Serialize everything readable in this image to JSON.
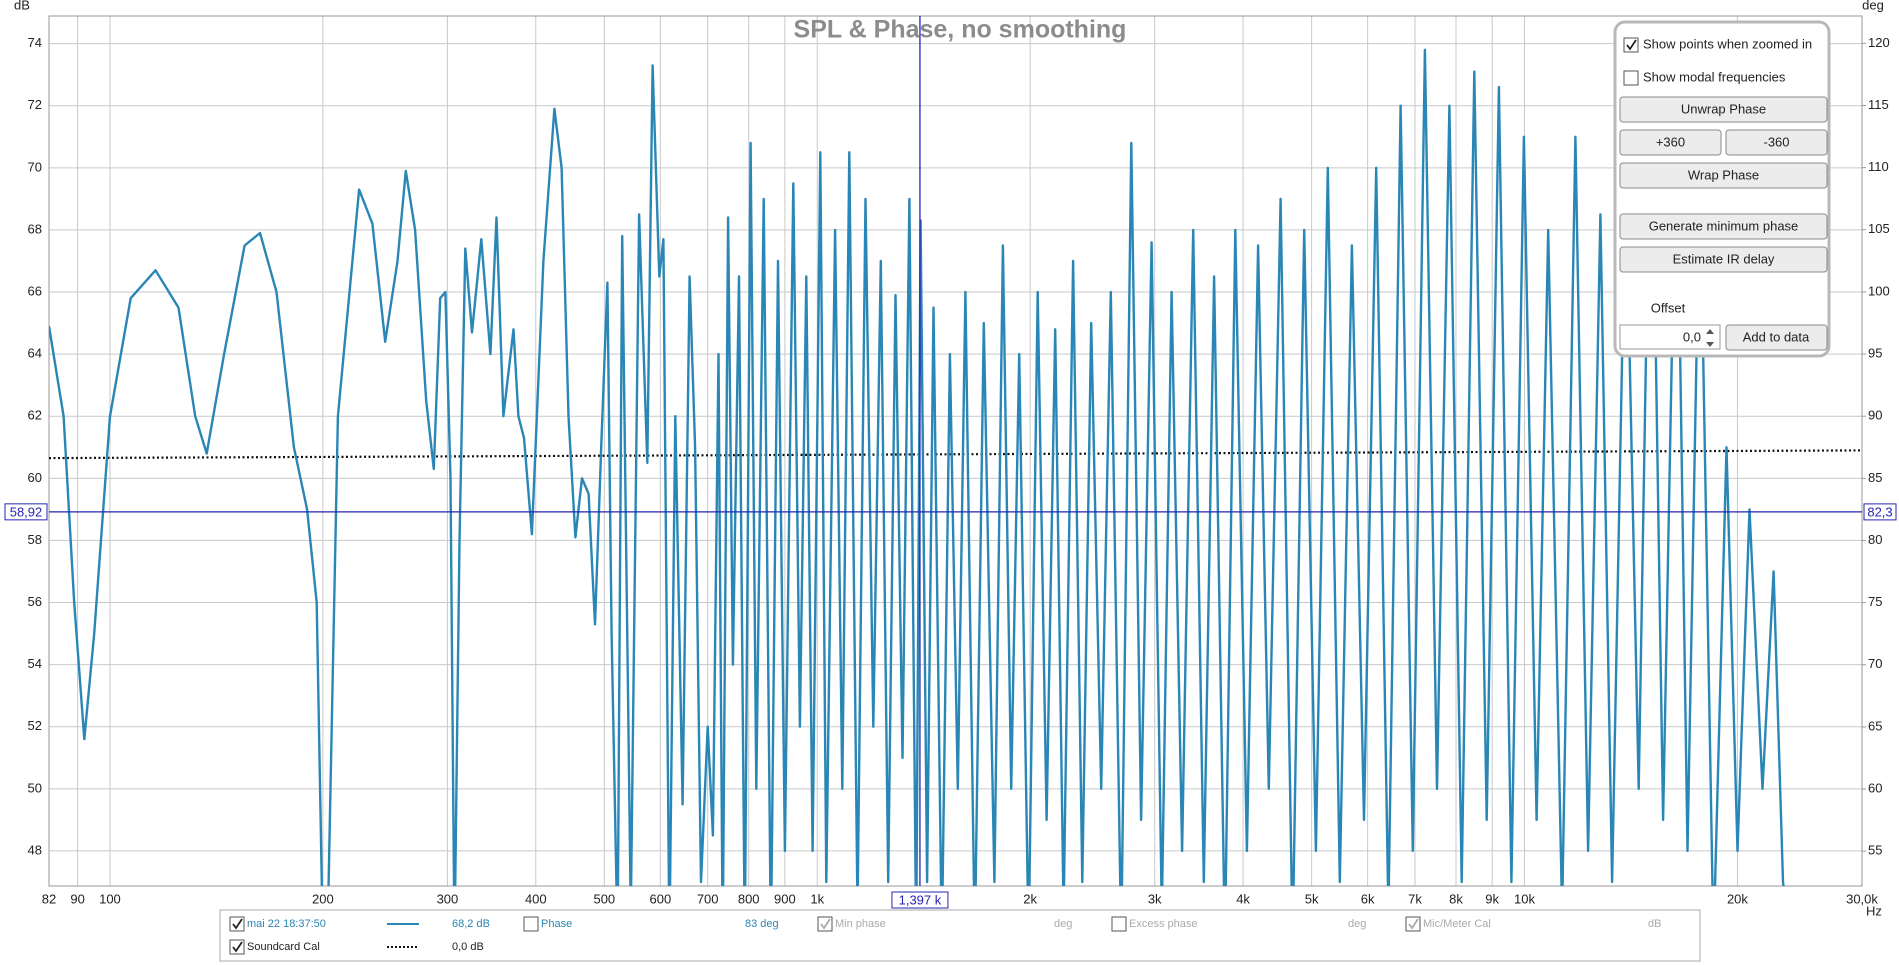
{
  "chart_data": {
    "type": "line",
    "title": "SPL & Phase, no smoothing",
    "y_unit": "dB",
    "y2_unit": "deg",
    "x_unit": "Hz",
    "log_x": true,
    "grid": true,
    "xlim": [
      82,
      30000
    ],
    "xticks": [
      82,
      90,
      100,
      200,
      300,
      400,
      500,
      600,
      700,
      800,
      900,
      {
        "value": 1000,
        "label": "1k"
      },
      {
        "value": 2000,
        "label": "2k"
      },
      {
        "value": 3000,
        "label": "3k"
      },
      {
        "value": 4000,
        "label": "4k"
      },
      {
        "value": 5000,
        "label": "5k"
      },
      {
        "value": 6000,
        "label": "6k"
      },
      {
        "value": 7000,
        "label": "7k"
      },
      {
        "value": 8000,
        "label": "8k"
      },
      {
        "value": 9000,
        "label": "9k"
      },
      {
        "value": 10000,
        "label": "10k"
      },
      {
        "value": 20000,
        "label": "20k"
      },
      {
        "value": 30000,
        "label": "30,0k"
      }
    ],
    "ylim": [
      46.87,
      74.89
    ],
    "yticks": [
      48,
      50,
      52,
      54,
      56,
      58,
      60,
      62,
      64,
      66,
      68,
      70,
      72,
      74
    ],
    "y2lim": [
      52.2,
      122.2
    ],
    "y2ticks": [
      55,
      60,
      65,
      70,
      75,
      80,
      85,
      90,
      95,
      100,
      105,
      110,
      115,
      120
    ],
    "cursor": {
      "x": {
        "value": 1397,
        "label": "1,397 k"
      },
      "y": {
        "value": 58.92,
        "label": "58,92"
      },
      "y2": {
        "value": 82.3,
        "label": "82,3"
      }
    },
    "series": [
      {
        "name": "mai 22 18:37:50",
        "color": "#2a86b4",
        "style": "solid",
        "checked": true,
        "readout": "68,2 dB",
        "x": [
          82,
          86,
          89,
          92,
          95,
          100,
          107,
          116,
          125,
          132,
          137,
          145,
          155,
          163,
          172,
          182,
          190,
          196,
          200,
          203,
          210,
          225,
          235,
          245,
          255,
          262,
          270,
          280,
          287,
          293,
          298,
          303,
          307,
          312,
          318,
          325,
          335,
          345,
          352,
          360,
          372,
          378,
          385,
          395,
          410,
          425,
          435,
          445,
          455,
          465,
          475,
          485,
          495,
          505,
          512,
          522,
          530,
          545,
          560,
          575,
          585,
          598,
          606,
          618,
          630,
          645,
          660,
          672,
          685,
          700,
          712,
          725,
          735,
          748,
          760,
          775,
          790,
          805,
          820,
          840,
          860,
          880,
          900,
          925,
          945,
          965,
          985,
          1010,
          1030,
          1060,
          1085,
          1110,
          1140,
          1170,
          1200,
          1230,
          1260,
          1290,
          1320,
          1350,
          1380,
          1400,
          1430,
          1460,
          1500,
          1540,
          1580,
          1620,
          1670,
          1720,
          1780,
          1830,
          1880,
          1930,
          1990,
          2050,
          2110,
          2170,
          2230,
          2300,
          2370,
          2440,
          2520,
          2600,
          2690,
          2780,
          2870,
          2970,
          3070,
          3170,
          3280,
          3400,
          3520,
          3640,
          3770,
          3900,
          4050,
          4200,
          4350,
          4520,
          4700,
          4880,
          5070,
          5270,
          5480,
          5700,
          5930,
          6170,
          6420,
          6680,
          6950,
          7230,
          7520,
          7830,
          8150,
          8490,
          8840,
          9200,
          9580,
          9980,
          10400,
          10800,
          11300,
          11800,
          12300,
          12800,
          13300,
          13900,
          14500,
          15100,
          15700,
          16400,
          17000,
          17700,
          18500,
          19300,
          20000,
          20800,
          21700,
          22500,
          23200,
          23800
        ],
        "values": [
          64.9,
          62,
          56,
          51.6,
          55,
          62,
          65.8,
          66.7,
          65.5,
          62,
          60.8,
          64,
          67.5,
          67.9,
          66,
          61,
          59,
          56,
          45,
          45,
          62,
          69.3,
          68.2,
          64.4,
          67,
          69.9,
          68,
          62.5,
          60.3,
          65.8,
          66,
          60,
          45,
          58,
          67.4,
          64.7,
          67.7,
          64,
          68.4,
          62,
          64.8,
          62,
          61.3,
          58.2,
          67,
          71.9,
          70,
          62,
          58.1,
          60,
          59.5,
          55.3,
          61,
          66.3,
          55,
          45,
          67.8,
          46,
          68.5,
          60.5,
          73.3,
          66.5,
          67.7,
          45,
          62,
          49.5,
          66.5,
          61,
          47,
          52,
          48.5,
          64,
          45,
          68.4,
          54,
          66.5,
          45,
          70.8,
          50,
          69,
          45,
          67,
          48,
          69.5,
          52,
          66.5,
          48,
          70.5,
          47,
          68,
          50,
          70.5,
          46,
          69,
          52,
          67,
          47,
          65.9,
          51,
          69,
          45,
          68.3,
          47,
          65.5,
          45,
          64,
          50,
          66,
          45,
          65,
          47,
          67.5,
          50,
          64,
          45,
          66,
          49,
          64.8,
          46,
          67,
          47,
          65,
          50,
          66,
          45,
          70.8,
          49,
          67.6,
          46,
          66,
          48,
          68,
          47,
          66.5,
          45,
          68,
          48,
          67.5,
          50,
          69,
          45,
          68,
          48,
          70,
          47,
          67.5,
          49,
          70,
          46,
          72,
          48,
          73.8,
          50,
          72,
          47,
          73.1,
          49,
          72.6,
          47,
          71,
          49,
          68,
          46,
          71,
          48,
          68.5,
          47,
          70,
          50,
          73.8,
          49,
          72,
          48,
          70,
          45,
          61,
          48,
          59,
          50,
          57,
          47,
          45
        ]
      },
      {
        "name": "Soundcard Cal",
        "color": "#111111",
        "style": "dotted",
        "checked": true,
        "readout": "0,0 dB",
        "x": [
          82,
          30000
        ],
        "values": [
          60.65,
          60.9
        ]
      }
    ]
  },
  "legend_extra": [
    {
      "label": "Phase",
      "checked": false,
      "readout": "83 deg",
      "muted": false
    },
    {
      "label": "Min phase",
      "checked": true,
      "readout": "deg",
      "muted": true
    },
    {
      "label": "Excess phase",
      "checked": false,
      "readout": "deg",
      "muted": true
    },
    {
      "label": "Mic/Meter Cal",
      "checked": true,
      "readout": "dB",
      "muted": true
    }
  ],
  "panel": {
    "checkboxes": [
      {
        "label": "Show points when zoomed in",
        "checked": true
      },
      {
        "label": "Show modal frequencies",
        "checked": false
      }
    ],
    "buttons": [
      "Unwrap Phase",
      "+360",
      "-360",
      "Wrap Phase",
      "Generate minimum phase",
      "Estimate IR delay"
    ],
    "offset_label": "Offset",
    "offset_value": "0,0",
    "add_button": "Add to data"
  }
}
